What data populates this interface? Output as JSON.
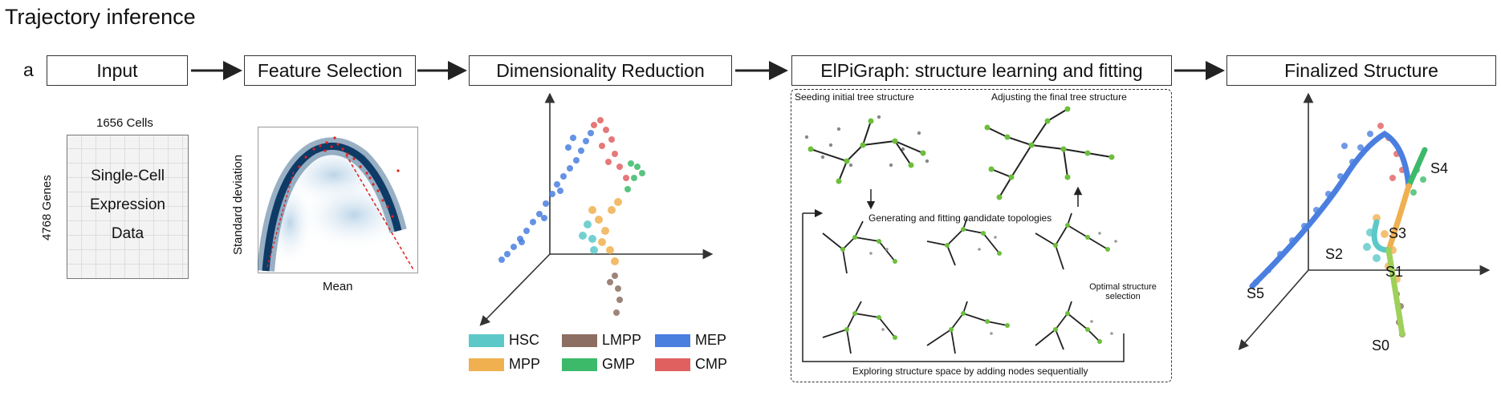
{
  "title": "Trajectory inference",
  "panel_label": "a",
  "steps": {
    "input": "Input",
    "feature_selection": "Feature Selection",
    "dim_reduction": "Dimensionality Reduction",
    "elpigraph": "ElPiGraph: structure learning and fitting",
    "finalized": "Finalized Structure"
  },
  "input_panel": {
    "cells": "1656 Cells",
    "genes": "4768 Genes",
    "line1": "Single-Cell",
    "line2": "Expression",
    "line3": "Data"
  },
  "feature_panel": {
    "ylabel": "Standard deviation",
    "xlabel": "Mean"
  },
  "elpi_panel": {
    "seed": "Seeding initial tree structure",
    "adjust": "Adjusting the final tree structure",
    "generate": "Generating and fitting candidate topologies",
    "optimal_line1": "Optimal structure",
    "optimal_line2": "selection",
    "explore": "Exploring structure space by adding nodes sequentially"
  },
  "legend": [
    {
      "label": "HSC",
      "color": "#5cc8c8"
    },
    {
      "label": "LMPP",
      "color": "#8c6e62"
    },
    {
      "label": "MEP",
      "color": "#4a7fe0"
    },
    {
      "label": "MPP",
      "color": "#f0b050"
    },
    {
      "label": "GMP",
      "color": "#3cba6a"
    },
    {
      "label": "CMP",
      "color": "#e06060"
    }
  ],
  "branches": {
    "s0": "S0",
    "s1": "S1",
    "s2": "S2",
    "s3": "S3",
    "s4": "S4",
    "s5": "S5"
  }
}
